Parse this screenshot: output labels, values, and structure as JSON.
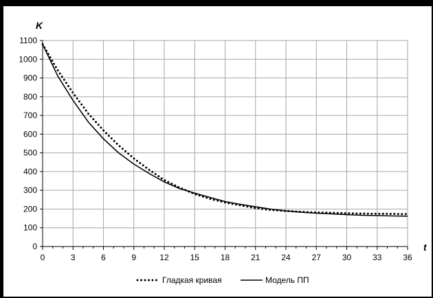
{
  "chart_data": {
    "type": "line",
    "title": "",
    "xlabel": "t",
    "ylabel": "K",
    "xlim": [
      0,
      36
    ],
    "ylim": [
      0,
      1100
    ],
    "x_ticks": [
      0,
      3,
      6,
      9,
      12,
      15,
      18,
      21,
      24,
      27,
      30,
      33,
      36
    ],
    "y_ticks": [
      0,
      100,
      200,
      300,
      400,
      500,
      600,
      700,
      800,
      900,
      1000,
      1100
    ],
    "grid": true,
    "legend_position": "bottom",
    "series": [
      {
        "name": "Гладкая кривая",
        "style": "dotted",
        "color": "#000000",
        "x": [
          0,
          1.5,
          3,
          4.5,
          6,
          7.5,
          9,
          10.5,
          12,
          13.5,
          15,
          16.5,
          18,
          19.5,
          21,
          22.5,
          24,
          25.5,
          27,
          28.5,
          30,
          31.5,
          33,
          34.5,
          36
        ],
        "y": [
          1080,
          940,
          820,
          710,
          620,
          540,
          470,
          410,
          355,
          315,
          280,
          255,
          235,
          220,
          205,
          195,
          190,
          185,
          182,
          180,
          178,
          176,
          175,
          174,
          173
        ]
      },
      {
        "name": "Модель ПП",
        "style": "solid",
        "color": "#000000",
        "x": [
          0,
          1.5,
          3,
          4.5,
          6,
          7.5,
          9,
          10.5,
          12,
          13.5,
          15,
          16.5,
          18,
          19.5,
          21,
          22.5,
          24,
          25.5,
          27,
          28.5,
          30,
          31.5,
          33,
          34.5,
          36
        ],
        "y": [
          1080,
          910,
          780,
          665,
          575,
          500,
          440,
          390,
          345,
          310,
          285,
          262,
          240,
          225,
          212,
          200,
          190,
          183,
          178,
          174,
          170,
          167,
          165,
          163,
          162
        ]
      }
    ]
  }
}
